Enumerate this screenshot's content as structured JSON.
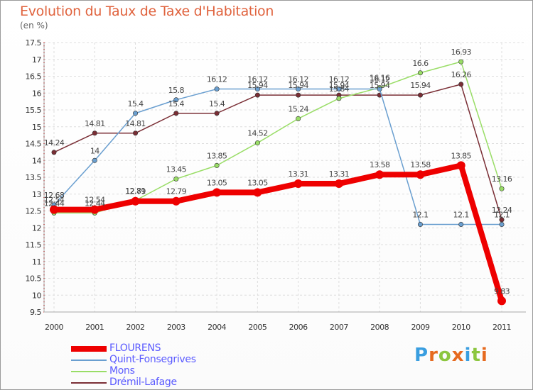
{
  "header": {
    "title": "Evolution du Taux de Taxe d'Habitation",
    "subtitle": "(en %)"
  },
  "logo": {
    "letters": [
      "P",
      "r",
      "o",
      "x",
      "i",
      "t",
      "i"
    ],
    "colors": [
      "#3a9ee0",
      "#e66a1f",
      "#8cc63f",
      "#e66a1f",
      "#3a9ee0",
      "#8cc63f",
      "#e66a1f"
    ]
  },
  "chart_data": {
    "type": "line",
    "title": "Evolution du Taux de Taxe d'Habitation",
    "ylabel": "(en %)",
    "xlabel": "",
    "x": [
      "2000",
      "2001",
      "2002",
      "2003",
      "2004",
      "2005",
      "2006",
      "2007",
      "2008",
      "2009",
      "2010",
      "2011"
    ],
    "ylim": [
      9.5,
      17.5
    ],
    "yticks": [
      "9.5",
      "10",
      "10.5",
      "11",
      "11.5",
      "12",
      "12.5",
      "13",
      "13.5",
      "14",
      "14.5",
      "15",
      "15.5",
      "16",
      "16.5",
      "17",
      "17.5"
    ],
    "grid": true,
    "legend_position": "bottom-left",
    "series": [
      {
        "name": "FLOURENS",
        "color": "#ee0000",
        "width": 8,
        "values": [
          12.54,
          12.54,
          12.79,
          12.79,
          13.05,
          13.05,
          13.31,
          13.31,
          13.58,
          13.58,
          13.85,
          9.83
        ],
        "labels": [
          "12.54",
          "12.54",
          "12.79",
          "12.79",
          "13.05",
          "13.05",
          "13.31",
          "13.31",
          "13.58",
          "13.58",
          "13.85",
          "9.83"
        ]
      },
      {
        "name": "Quint-Fonsegrives",
        "color": "#6a9fd0",
        "width": 1.5,
        "values": [
          12.68,
          14,
          15.4,
          15.8,
          16.12,
          16.12,
          16.12,
          16.12,
          16.12,
          12.1,
          12.1,
          12.1
        ],
        "labels": [
          "12.68",
          "14",
          "15.4",
          "15.8",
          "16.12",
          "16.12",
          "16.12",
          "16.12",
          "16.12",
          "12.1",
          "12.1",
          "12.1"
        ]
      },
      {
        "name": "Mons",
        "color": "#99dd66",
        "width": 1.5,
        "values": [
          12.44,
          12.44,
          12.81,
          13.45,
          13.85,
          14.52,
          15.24,
          15.84,
          16.16,
          16.6,
          16.93,
          13.16
        ],
        "labels": [
          "12.44",
          "12.44",
          "12.81",
          "13.45",
          "13.85",
          "14.52",
          "15.24",
          "15.84",
          "16.16",
          "16.6",
          "16.93",
          "13.16"
        ]
      },
      {
        "name": "Drémil-Lafage",
        "color": "#7a2e35",
        "width": 1.5,
        "values": [
          14.24,
          14.81,
          14.81,
          15.4,
          15.4,
          15.94,
          15.94,
          15.94,
          15.94,
          15.94,
          16.26,
          12.24
        ],
        "labels": [
          "14.24",
          "14.81",
          "14.81",
          "15.4",
          "15.4",
          "15.94",
          "15.94",
          "15.94",
          "15.94",
          "15.94",
          "16.26",
          "12.24"
        ]
      }
    ]
  }
}
